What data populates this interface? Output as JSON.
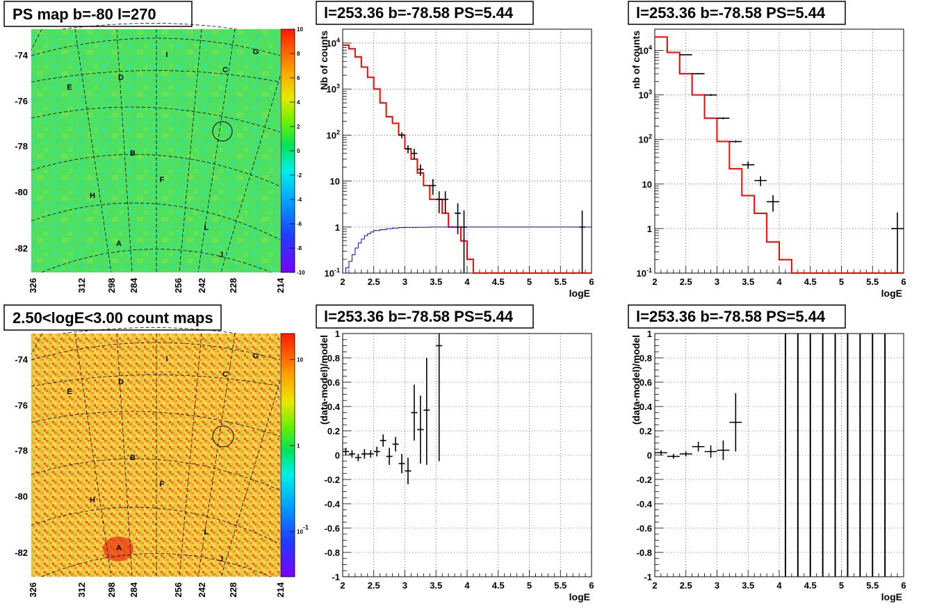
{
  "chart_data": [
    {
      "type": "heatmap",
      "title": "PS map b=-80 l=270",
      "colorbar": {
        "ticks": [
          "10",
          "8",
          "6",
          "4",
          "2",
          "0",
          "-2",
          "-4",
          "-6",
          "-8",
          "-10"
        ],
        "range": [
          -10,
          10
        ],
        "scale": "linear"
      },
      "y_ticks": [
        "-74",
        "-76",
        "-78",
        "-80",
        "-82"
      ],
      "x_ticks": [
        "326",
        "312",
        "298",
        "284",
        "256",
        "242",
        "228",
        "214"
      ],
      "regions": [
        "I",
        "G",
        "C",
        "D",
        "E",
        "B",
        "F",
        "H",
        "L",
        "A",
        "J"
      ],
      "circle_marker": "C"
    },
    {
      "type": "line",
      "title": "l=253.36 b=-78.58 PS=5.44",
      "xlabel": "logE",
      "ylabel": "Nb of counts",
      "xlim": [
        2,
        6
      ],
      "ylim": [
        0.1,
        20000
      ],
      "yscale": "log",
      "grid": true,
      "x_ticks": [
        "2",
        "2.5",
        "3",
        "3.5",
        "4",
        "4.5",
        "5",
        "5.5",
        "6"
      ],
      "y_ticks": [
        "10^-1",
        "1",
        "10",
        "10^2",
        "10^3",
        "10^4"
      ],
      "series": [
        {
          "color": "#ff0000",
          "style": "step",
          "edges": [
            2.0,
            2.1,
            2.2,
            2.3,
            2.4,
            2.5,
            2.6,
            2.7,
            2.8,
            2.9,
            3.0,
            3.1,
            3.2,
            3.3,
            3.4,
            3.5,
            3.6,
            3.7,
            3.8,
            3.9,
            4.0,
            4.1,
            6.0
          ],
          "values": [
            9000,
            7500,
            5000,
            3000,
            1800,
            1000,
            500,
            250,
            180,
            100,
            50,
            30,
            15,
            8,
            4,
            4,
            2,
            1,
            1,
            0.5,
            0.2,
            0.1
          ]
        },
        {
          "color": "#0000cc",
          "style": "step",
          "edges": [
            2.0,
            2.05,
            2.1,
            2.15,
            2.2,
            2.25,
            2.3,
            2.35,
            2.4,
            2.45,
            2.5,
            2.6,
            2.7,
            2.8,
            2.9,
            3.0,
            3.2,
            3.4,
            6.0
          ],
          "values": [
            0.1,
            0.13,
            0.18,
            0.25,
            0.35,
            0.45,
            0.55,
            0.65,
            0.72,
            0.78,
            0.84,
            0.88,
            0.92,
            0.95,
            0.97,
            0.98,
            0.99,
            1.0
          ]
        },
        {
          "color": "#000000",
          "style": "errorbars",
          "x": [
            2.95,
            3.05,
            3.15,
            3.25,
            3.45,
            3.55,
            3.65,
            3.85,
            3.95,
            5.85
          ],
          "y": [
            100,
            50,
            40,
            18,
            8,
            4,
            4,
            2,
            1,
            1
          ],
          "xerr": [
            0.05,
            0.05,
            0.05,
            0.05,
            0.05,
            0.05,
            0.05,
            0.05,
            0.05,
            0.05
          ],
          "ylo": [
            85,
            40,
            30,
            13,
            5,
            2,
            2,
            0.7,
            0.1,
            0.1
          ],
          "yhi": [
            115,
            60,
            50,
            23,
            11,
            6,
            6,
            3.3,
            2.3,
            2.3
          ]
        }
      ]
    },
    {
      "type": "line",
      "title": "l=253.36 b=-78.58 PS=5.44",
      "xlabel": "logE",
      "ylabel": "nb of counts",
      "xlim": [
        2,
        6
      ],
      "ylim": [
        0.1,
        30000
      ],
      "yscale": "log",
      "grid": true,
      "x_ticks": [
        "2",
        "2.5",
        "3",
        "3.5",
        "4",
        "4.5",
        "5",
        "5.5",
        "6"
      ],
      "y_ticks": [
        "10^-1",
        "1",
        "10",
        "10^2",
        "10^3",
        "10^4"
      ],
      "series": [
        {
          "color": "#ff0000",
          "style": "step",
          "edges": [
            2.0,
            2.2,
            2.4,
            2.6,
            2.8,
            3.0,
            3.2,
            3.4,
            3.6,
            3.8,
            4.0,
            4.2,
            6.0
          ],
          "values": [
            20000,
            9000,
            3000,
            1000,
            300,
            90,
            22,
            5.5,
            2.2,
            0.5,
            0.2,
            0.1
          ]
        },
        {
          "color": "#000000",
          "style": "errorbars",
          "x": [
            2.5,
            2.7,
            2.9,
            3.1,
            3.3,
            3.5,
            3.7,
            3.9,
            5.9
          ],
          "y": [
            8000,
            3000,
            1000,
            300,
            90,
            27,
            12,
            4,
            1
          ],
          "xerr": [
            0.1,
            0.1,
            0.1,
            0.1,
            0.1,
            0.1,
            0.1,
            0.1,
            0.1
          ],
          "ylo": [
            7800,
            2900,
            950,
            285,
            85,
            22,
            9,
            2.4,
            0.1
          ],
          "yhi": [
            8200,
            3100,
            1050,
            315,
            95,
            32,
            15,
            5.6,
            2.3
          ]
        }
      ]
    },
    {
      "type": "heatmap",
      "title": "2.50<logE<3.00 count maps",
      "colorbar": {
        "ticks": [
          "10",
          "1",
          "10^-1"
        ],
        "range": [
          0.03,
          20
        ],
        "scale": "log"
      },
      "y_ticks": [
        "-74",
        "-76",
        "-78",
        "-80",
        "-82"
      ],
      "x_ticks": [
        "326",
        "312",
        "298",
        "284",
        "256",
        "242",
        "228",
        "214"
      ],
      "regions": [
        "I",
        "G",
        "C",
        "D",
        "E",
        "B",
        "F",
        "H",
        "L",
        "A",
        "J"
      ],
      "circle_marker": "C"
    },
    {
      "type": "scatter",
      "title": "l=253.36 b=-78.58 PS=5.44",
      "xlabel": "logE",
      "ylabel": "(data-model)/model",
      "xlim": [
        2,
        6
      ],
      "ylim": [
        -1,
        1
      ],
      "grid": true,
      "x_ticks": [
        "2",
        "2.5",
        "3",
        "3.5",
        "4",
        "4.5",
        "5",
        "5.5",
        "6"
      ],
      "y_ticks": [
        "-1",
        "-0.8",
        "-0.6",
        "-0.4",
        "-0.2",
        "0",
        "0.2",
        "0.4",
        "0.6",
        "0.8",
        "1"
      ],
      "series": [
        {
          "color": "#000000",
          "style": "errorbars",
          "x": [
            2.05,
            2.15,
            2.25,
            2.35,
            2.45,
            2.55,
            2.65,
            2.75,
            2.85,
            2.95,
            3.05,
            3.15,
            3.25,
            3.35,
            3.55
          ],
          "y": [
            0.03,
            0.01,
            -0.02,
            0.01,
            0.01,
            0.03,
            0.12,
            -0.01,
            0.09,
            -0.07,
            -0.13,
            0.35,
            0.21,
            0.37,
            0.9
          ],
          "xerr": [
            0.05,
            0.05,
            0.05,
            0.05,
            0.05,
            0.05,
            0.05,
            0.05,
            0.05,
            0.05,
            0.05,
            0.05,
            0.05,
            0.05,
            0.05
          ],
          "ylo": [
            0.0,
            -0.02,
            -0.05,
            -0.03,
            -0.02,
            -0.01,
            0.07,
            -0.08,
            0.03,
            -0.15,
            -0.24,
            0.12,
            -0.07,
            -0.08,
            -0.05
          ],
          "yhi": [
            0.06,
            0.04,
            0.01,
            0.05,
            0.04,
            0.07,
            0.17,
            0.06,
            0.15,
            0.01,
            -0.02,
            0.58,
            0.49,
            0.8,
            1.0
          ]
        }
      ]
    },
    {
      "type": "scatter",
      "title": "l=253.36 b=-78.58 PS=5.44",
      "xlabel": "logE",
      "ylabel": "(data-model)/model",
      "xlim": [
        2,
        6
      ],
      "ylim": [
        -1,
        1
      ],
      "grid": true,
      "x_ticks": [
        "2",
        "2.5",
        "3",
        "3.5",
        "4",
        "4.5",
        "5",
        "5.5",
        "6"
      ],
      "y_ticks": [
        "-1",
        "-0.8",
        "-0.6",
        "-0.4",
        "-0.2",
        "0",
        "0.2",
        "0.4",
        "0.6",
        "0.8",
        "1"
      ],
      "series": [
        {
          "color": "#000000",
          "style": "errorbars",
          "x": [
            2.1,
            2.3,
            2.5,
            2.7,
            2.9,
            3.1,
            3.3
          ],
          "y": [
            0.02,
            -0.01,
            0.01,
            0.07,
            0.03,
            0.04,
            0.27
          ],
          "xerr": [
            0.1,
            0.1,
            0.1,
            0.1,
            0.1,
            0.1,
            0.1
          ],
          "ylo": [
            0.0,
            -0.03,
            -0.01,
            0.03,
            -0.02,
            -0.04,
            0.03
          ],
          "yhi": [
            0.04,
            0.01,
            0.03,
            0.11,
            0.08,
            0.12,
            0.51
          ]
        },
        {
          "color": "#000000",
          "style": "vlines",
          "x": [
            4.1,
            4.3,
            4.5,
            4.7,
            4.9,
            5.1,
            5.3,
            5.5,
            5.7
          ],
          "ylo": [
            -1,
            -1,
            -1,
            -1,
            -1,
            -1,
            -1,
            -1,
            -1
          ],
          "yhi": [
            1,
            1,
            1,
            1,
            1,
            1,
            1,
            1,
            1
          ]
        }
      ]
    }
  ]
}
